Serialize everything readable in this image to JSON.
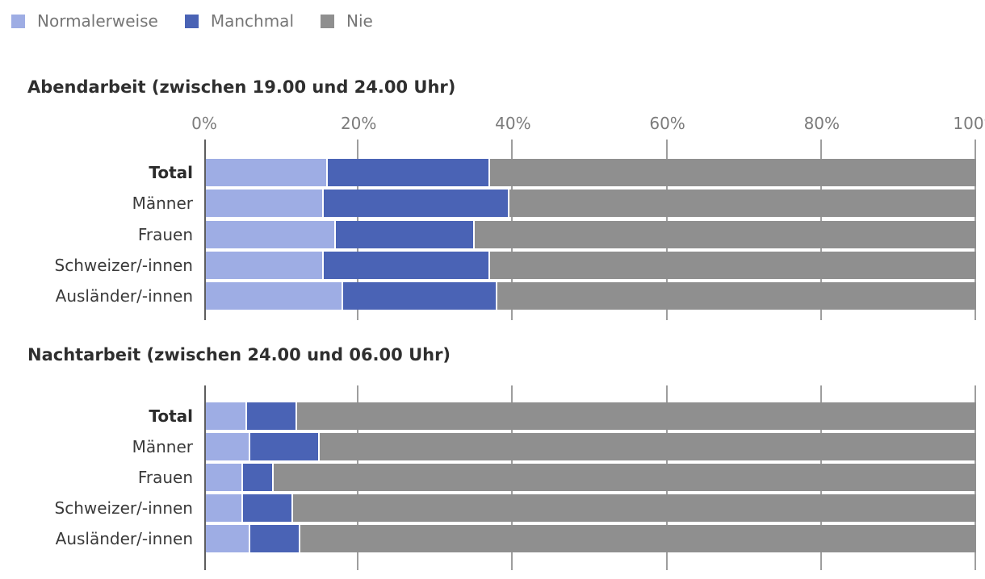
{
  "legend": {
    "items": [
      {
        "label": "Normalerweise",
        "color": "#9EADE4"
      },
      {
        "label": "Manchmal",
        "color": "#4A63B5"
      },
      {
        "label": "Nie",
        "color": "#8F8F8F"
      }
    ]
  },
  "chart_data": [
    {
      "type": "bar",
      "stacked": true,
      "orientation": "horizontal",
      "title": "Abendarbeit (zwischen 19.00 und 24.00 Uhr)",
      "categories": [
        "Total",
        "Männer",
        "Frauen",
        "Schweizer/-innen",
        "Ausländer/-innen"
      ],
      "series": [
        {
          "name": "Normalerweise",
          "color": "#9EADE4",
          "values": [
            16,
            15.5,
            17,
            15.5,
            18
          ]
        },
        {
          "name": "Manchmal",
          "color": "#4A63B5",
          "values": [
            21,
            24,
            18,
            21.5,
            20
          ]
        },
        {
          "name": "Nie",
          "color": "#8F8F8F",
          "values": [
            63,
            60.5,
            65,
            63,
            62
          ]
        }
      ],
      "x_axis": {
        "min": 0,
        "max": 100,
        "unit": "%",
        "ticks": [
          "0%",
          "20%",
          "40%",
          "60%",
          "80%",
          "100%"
        ],
        "show_labels": true
      },
      "grid": true,
      "legend_position": "top",
      "bold_category_index": 0
    },
    {
      "type": "bar",
      "stacked": true,
      "orientation": "horizontal",
      "title": "Nachtarbeit (zwischen 24.00 und 06.00 Uhr)",
      "categories": [
        "Total",
        "Männer",
        "Frauen",
        "Schweizer/-innen",
        "Ausländer/-innen"
      ],
      "series": [
        {
          "name": "Normalerweise",
          "color": "#9EADE4",
          "values": [
            5.5,
            6,
            5,
            5,
            6
          ]
        },
        {
          "name": "Manchmal",
          "color": "#4A63B5",
          "values": [
            6.5,
            9,
            4,
            6.5,
            6.5
          ]
        },
        {
          "name": "Nie",
          "color": "#8F8F8F",
          "values": [
            88,
            85,
            91,
            88.5,
            87.5
          ]
        }
      ],
      "x_axis": {
        "min": 0,
        "max": 100,
        "unit": "%",
        "ticks": [
          "0%",
          "20%",
          "40%",
          "60%",
          "80%",
          "100%"
        ],
        "show_labels": false
      },
      "grid": true,
      "legend_position": "none",
      "bold_category_index": 0
    }
  ]
}
